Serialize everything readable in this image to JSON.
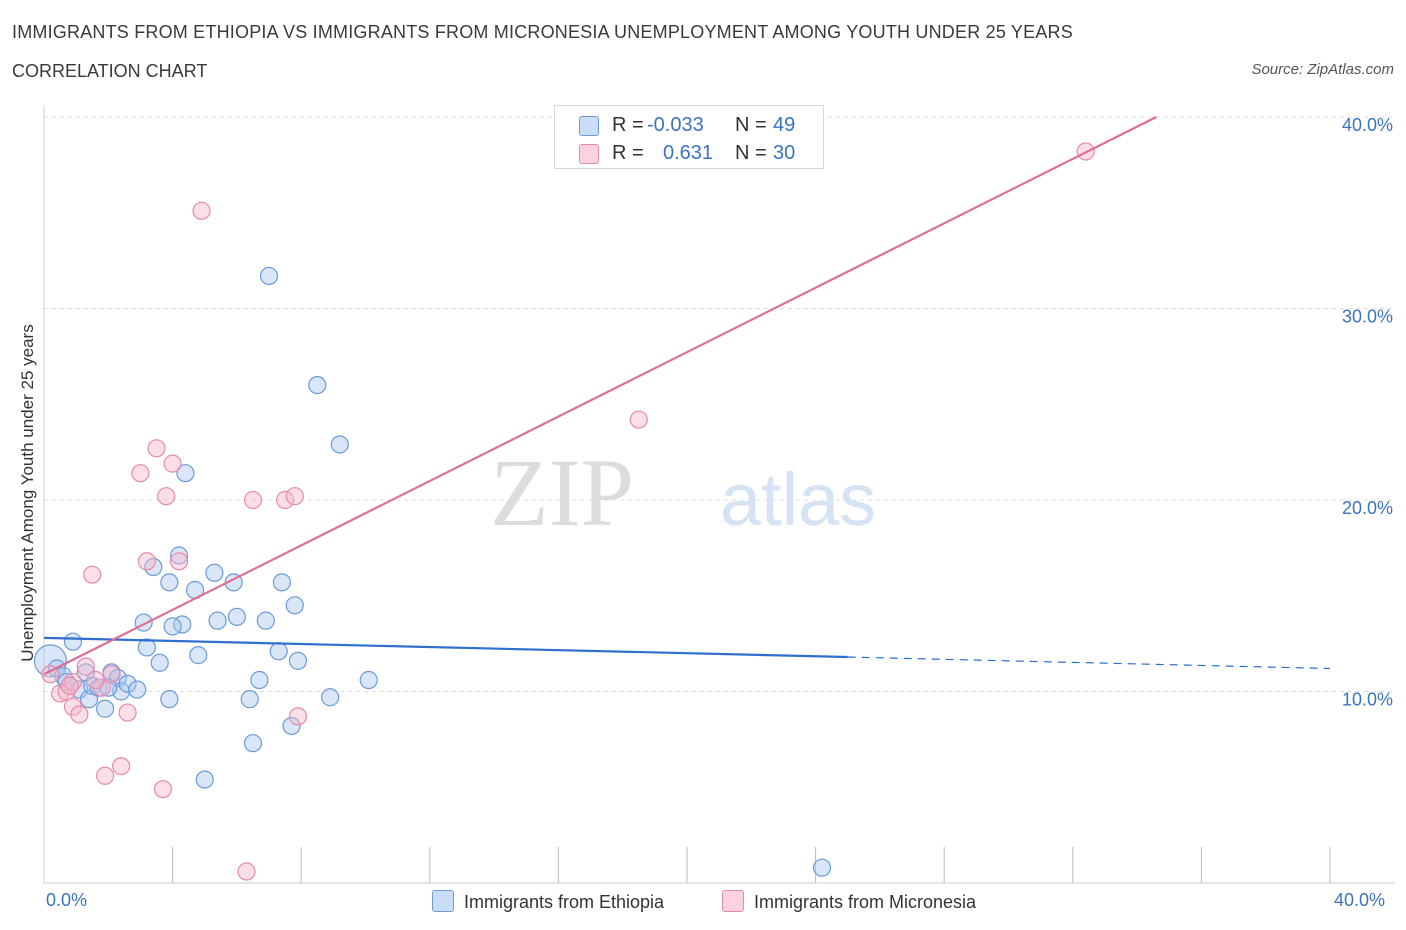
{
  "header": {
    "title": "IMMIGRANTS FROM ETHIOPIA VS IMMIGRANTS FROM MICRONESIA UNEMPLOYMENT AMONG YOUTH UNDER 25 YEARS",
    "subtitle": "CORRELATION CHART",
    "source": "Source: ZipAtlas.com"
  },
  "watermark": {
    "zip": "ZIP",
    "atlas": "atlas"
  },
  "legend_top": {
    "rows": [
      {
        "r_label": "R =",
        "r_value": "-0.033",
        "n_label": "N =",
        "n_value": "49",
        "color": "#a8c8f0"
      },
      {
        "r_label": "R =",
        "r_value": "0.631",
        "n_label": "N =",
        "n_value": "30",
        "color": "#f5b8cb"
      }
    ]
  },
  "legend_bottom": [
    {
      "label": "Immigrants from Ethiopia",
      "color": "#a8c8f0"
    },
    {
      "label": "Immigrants from Micronesia",
      "color": "#f5b8cb"
    }
  ],
  "colors": {
    "ethiopia_fill": "#a8c8f0",
    "ethiopia_stroke": "#6c9bd8",
    "ethiopia_line": "#2f6fcf",
    "micronesia_fill": "#f5b8cb",
    "micronesia_stroke": "#e78aa8",
    "micronesia_line": "#e06c95",
    "grid": "#dddddd",
    "axis_tick_text": "#3b73c4"
  },
  "chart_data": {
    "type": "scatter",
    "title": "IMMIGRANTS FROM ETHIOPIA VS IMMIGRANTS FROM MICRONESIA UNEMPLOYMENT AMONG YOUTH UNDER 25 YEARS",
    "xlabel": "",
    "ylabel": "Unemployment Among Youth under 25 years",
    "xlim": [
      0,
      40
    ],
    "ylim": [
      0,
      40
    ],
    "x_tick_labels": [
      "0.0%",
      "40.0%"
    ],
    "y_tick_labels": [
      {
        "value": 10,
        "label": "10.0%"
      },
      {
        "value": 20,
        "label": "20.0%"
      },
      {
        "value": 30,
        "label": "30.0%"
      },
      {
        "value": 40,
        "label": "40.0%"
      }
    ],
    "grid": true,
    "legend_position": "bottom",
    "series": [
      {
        "name": "Immigrants from Ethiopia",
        "r": -0.033,
        "n": 49,
        "trend": {
          "x0": 0,
          "y0": 12.8,
          "x1": 25,
          "y1": 11.8,
          "dashed_to_x": 40,
          "dashed_to_y": 11.2
        },
        "points": [
          [
            0.2,
            11.6
          ],
          [
            0.4,
            11.2
          ],
          [
            0.6,
            10.8
          ],
          [
            0.7,
            10.5
          ],
          [
            0.9,
            12.6
          ],
          [
            1.1,
            10.1
          ],
          [
            1.3,
            11.0
          ],
          [
            1.4,
            9.6
          ],
          [
            1.5,
            10.3
          ],
          [
            1.7,
            10.2
          ],
          [
            1.9,
            9.1
          ],
          [
            2.1,
            11.0
          ],
          [
            2.3,
            10.7
          ],
          [
            2.4,
            10.0
          ],
          [
            2.6,
            10.4
          ],
          [
            2.9,
            10.1
          ],
          [
            3.1,
            13.6
          ],
          [
            3.2,
            12.3
          ],
          [
            3.4,
            16.5
          ],
          [
            3.6,
            11.5
          ],
          [
            3.9,
            9.6
          ],
          [
            3.9,
            15.7
          ],
          [
            4.2,
            17.1
          ],
          [
            4.3,
            13.5
          ],
          [
            4.4,
            21.4
          ],
          [
            4.7,
            15.3
          ],
          [
            4.8,
            11.9
          ],
          [
            5.0,
            5.4
          ],
          [
            5.3,
            16.2
          ],
          [
            5.4,
            13.7
          ],
          [
            5.9,
            15.7
          ],
          [
            6.0,
            13.9
          ],
          [
            6.4,
            9.6
          ],
          [
            6.5,
            7.3
          ],
          [
            6.7,
            10.6
          ],
          [
            6.9,
            13.7
          ],
          [
            7.0,
            31.7
          ],
          [
            7.3,
            12.1
          ],
          [
            7.4,
            15.7
          ],
          [
            7.7,
            8.2
          ],
          [
            7.8,
            14.5
          ],
          [
            7.9,
            11.6
          ],
          [
            8.5,
            26.0
          ],
          [
            8.9,
            9.7
          ],
          [
            9.2,
            22.9
          ],
          [
            10.1,
            10.6
          ],
          [
            24.2,
            0.8
          ],
          [
            4.0,
            13.4
          ],
          [
            2.0,
            10.2
          ]
        ]
      },
      {
        "name": "Immigrants from Micronesia",
        "r": 0.631,
        "n": 30,
        "trend": {
          "x0": 0,
          "y0": 10.9,
          "x1": 34.6,
          "y1": 40.0
        },
        "points": [
          [
            0.2,
            10.9
          ],
          [
            0.5,
            9.9
          ],
          [
            0.7,
            10.0
          ],
          [
            0.9,
            10.5
          ],
          [
            0.9,
            9.2
          ],
          [
            1.1,
            8.8
          ],
          [
            1.3,
            11.3
          ],
          [
            1.5,
            16.1
          ],
          [
            1.8,
            10.2
          ],
          [
            1.9,
            5.6
          ],
          [
            2.1,
            10.9
          ],
          [
            2.4,
            6.1
          ],
          [
            2.6,
            8.9
          ],
          [
            3.0,
            21.4
          ],
          [
            3.2,
            16.8
          ],
          [
            3.5,
            22.7
          ],
          [
            3.7,
            4.9
          ],
          [
            3.8,
            20.2
          ],
          [
            4.0,
            21.9
          ],
          [
            4.2,
            16.8
          ],
          [
            4.9,
            35.1
          ],
          [
            6.3,
            0.6
          ],
          [
            6.5,
            20.0
          ],
          [
            7.5,
            20.0
          ],
          [
            7.8,
            20.2
          ],
          [
            7.9,
            8.7
          ],
          [
            18.5,
            24.2
          ],
          [
            32.4,
            38.2
          ],
          [
            0.8,
            10.3
          ],
          [
            1.6,
            10.6
          ]
        ]
      }
    ]
  }
}
